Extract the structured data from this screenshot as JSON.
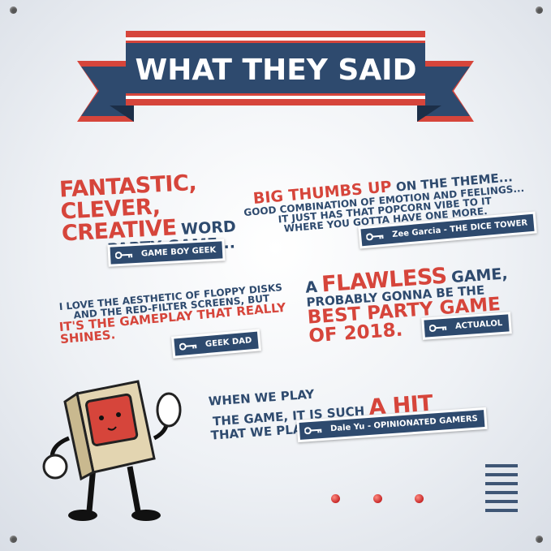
{
  "banner": {
    "title": "WHAT THEY SAID"
  },
  "quotes": [
    {
      "lines": [
        [
          "FANTASTIC,"
        ],
        [
          "CLEVER,"
        ],
        [
          "CREATIVE",
          "WORD"
        ],
        [
          "PARTY GAME..."
        ]
      ],
      "source": "GAME BOY GEEK"
    },
    {
      "lines": [
        [
          "BIG THUMBS UP",
          "ON THE THEME..."
        ],
        [
          "GOOD COMBINATION OF EMOTION AND FEELINGS..."
        ],
        [
          "IT JUST HAS THAT POPCORN VIBE TO IT"
        ],
        [
          "WHERE YOU GOTTA HAVE ONE MORE."
        ]
      ],
      "source": "Zee Garcia - THE DICE TOWER"
    },
    {
      "lines": [
        [
          "I LOVE THE AESTHETIC OF FLOPPY DISKS"
        ],
        [
          "AND THE RED-FILTER SCREENS, BUT"
        ],
        [
          "IT'S THE GAMEPLAY THAT REALLY"
        ],
        [
          "SHINES."
        ]
      ],
      "source": "GEEK DAD"
    },
    {
      "lines": [
        [
          "A",
          "FLAWLESS",
          "GAME,"
        ],
        [
          "PROBABLY GONNA BE THE"
        ],
        [
          "BEST PARTY GAME"
        ],
        [
          "OF 2018."
        ]
      ],
      "source": "ACTUALOL"
    },
    {
      "lines": [
        [
          "WHEN WE PLAY"
        ],
        [
          "THE GAME, IT IS SUCH",
          "A HIT"
        ],
        [
          "THAT WE PLAY MULTIPLE GAMES."
        ]
      ],
      "source": "Dale Yu - OPINIONATED GAMERS"
    }
  ]
}
